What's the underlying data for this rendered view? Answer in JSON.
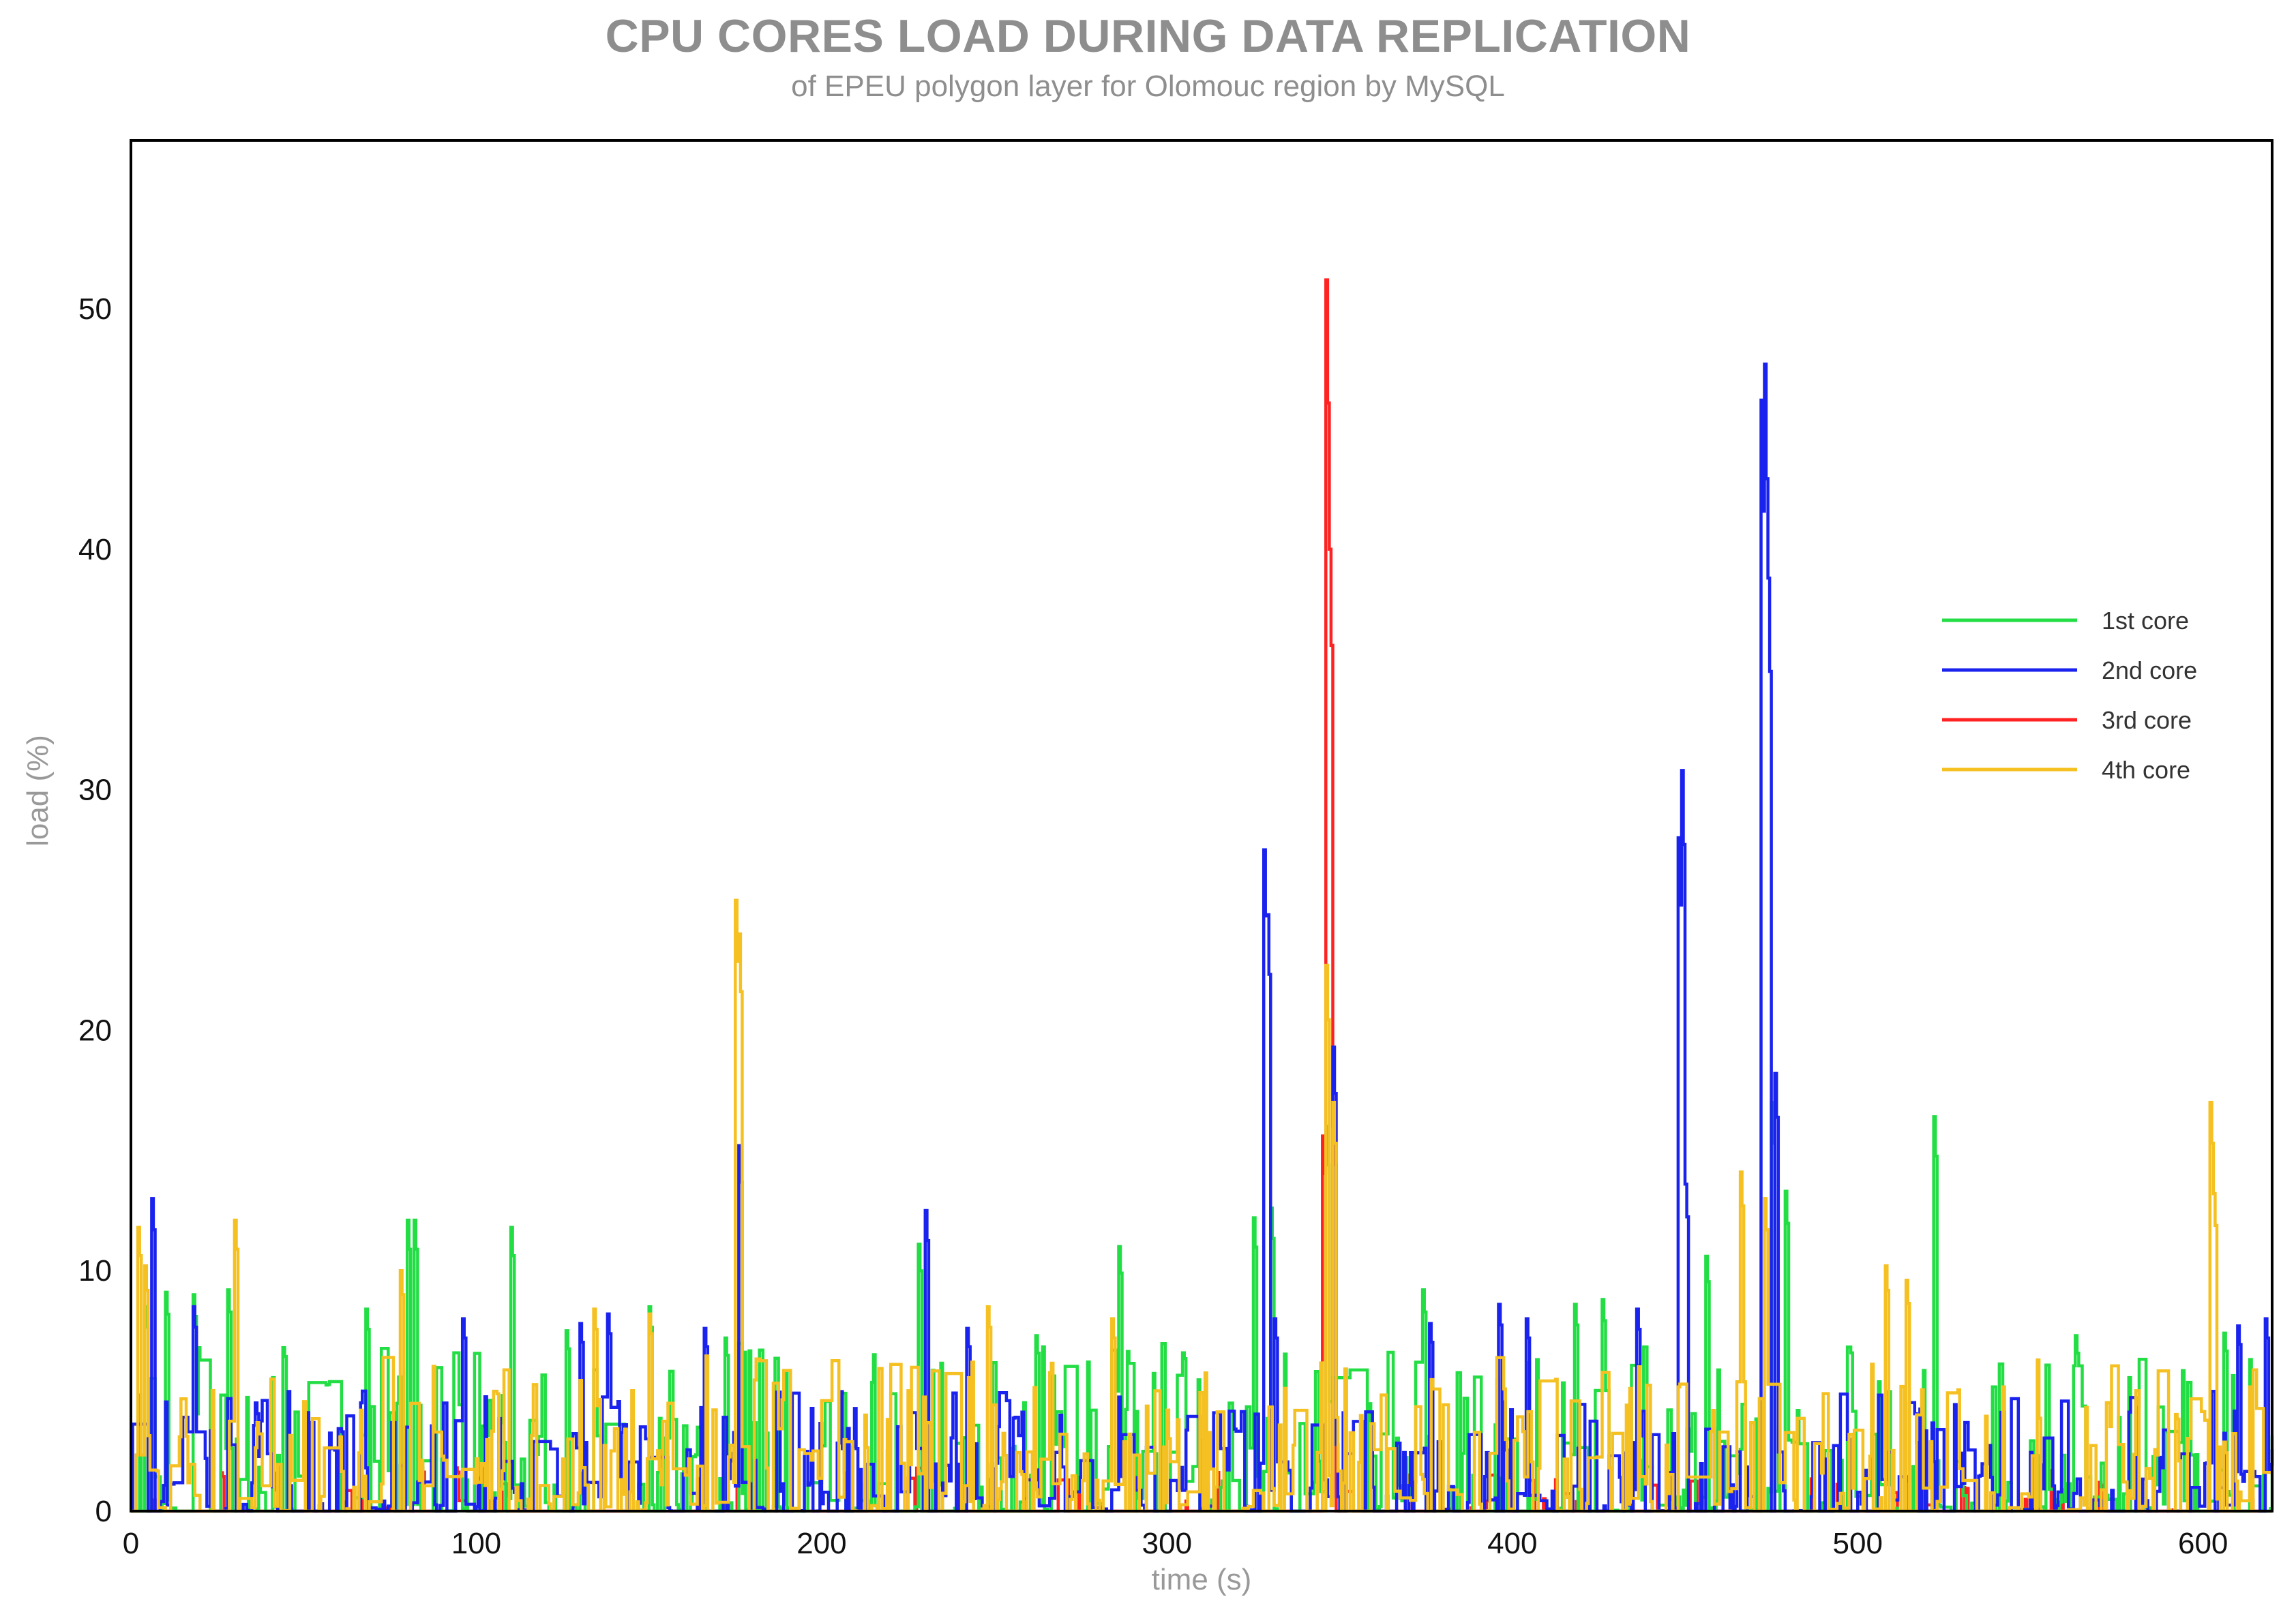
{
  "chart_data": {
    "type": "line",
    "title": "CPU CORES LOAD DURING DATA REPLICATION",
    "subtitle": "of EPEU polygon layer for Olomouc region by MySQL",
    "xlabel": "time (s)",
    "ylabel": "load (%)",
    "xlim": [
      0,
      620
    ],
    "ylim": [
      0,
      57
    ],
    "xticks": [
      0,
      100,
      200,
      300,
      400,
      500,
      600
    ],
    "yticks": [
      0,
      10,
      20,
      30,
      40,
      50
    ],
    "grid": false,
    "legend_position": "right",
    "series": [
      {
        "name": "1st core",
        "color": "#22dd44",
        "peaks": [
          [
            4,
            8.5
          ],
          [
            10,
            9.1
          ],
          [
            18,
            9.0
          ],
          [
            28,
            9.2
          ],
          [
            44,
            6.8
          ],
          [
            68,
            8.4
          ],
          [
            80,
            12.1
          ],
          [
            82,
            12.1
          ],
          [
            110,
            11.8
          ],
          [
            126,
            7.5
          ],
          [
            150,
            8.5
          ],
          [
            172,
            7.2
          ],
          [
            228,
            11.1
          ],
          [
            262,
            7.3
          ],
          [
            286,
            11.0
          ],
          [
            325,
            12.2
          ],
          [
            330,
            12.6
          ],
          [
            346,
            16.0
          ],
          [
            374,
            9.2
          ],
          [
            418,
            8.6
          ],
          [
            426,
            8.8
          ],
          [
            456,
            10.6
          ],
          [
            475,
            17.0
          ],
          [
            479,
            13.3
          ],
          [
            522,
            16.4
          ],
          [
            563,
            7.3
          ],
          [
            606,
            7.4
          ]
        ],
        "baseline": [
          0,
          7
        ]
      },
      {
        "name": "2nd core",
        "color": "#1a22ee",
        "peaks": [
          [
            6,
            13.0
          ],
          [
            18,
            8.5
          ],
          [
            36,
            4.5
          ],
          [
            96,
            8.0
          ],
          [
            130,
            7.8
          ],
          [
            138,
            8.2
          ],
          [
            166,
            7.6
          ],
          [
            176,
            15.2
          ],
          [
            230,
            12.5
          ],
          [
            242,
            7.6
          ],
          [
            328,
            27.5
          ],
          [
            329,
            24.8
          ],
          [
            331,
            8.0
          ],
          [
            348,
            19.3
          ],
          [
            376,
            7.8
          ],
          [
            396,
            8.6
          ],
          [
            404,
            8.0
          ],
          [
            436,
            8.4
          ],
          [
            448,
            28.0
          ],
          [
            449,
            30.8
          ],
          [
            450,
            13.6
          ],
          [
            472,
            46.2
          ],
          [
            473,
            47.7
          ],
          [
            474,
            38.8
          ],
          [
            476,
            18.2
          ],
          [
            516,
            4.5
          ],
          [
            610,
            7.7
          ],
          [
            618,
            8.0
          ]
        ],
        "baseline": [
          0,
          5
        ]
      },
      {
        "name": "3rd core",
        "color": "#ff2222",
        "peaks": [
          [
            26,
            1.6
          ],
          [
            84,
            1.8
          ],
          [
            94,
            1.8
          ],
          [
            345,
            15.6
          ],
          [
            346,
            51.2
          ],
          [
            347,
            40.0
          ],
          [
            348,
            16.0
          ],
          [
            370,
            1.5
          ],
          [
            570,
            1.2
          ]
        ],
        "baseline": [
          0,
          1.8
        ]
      },
      {
        "name": "4th core",
        "color": "#f5c021",
        "peaks": [
          [
            2,
            11.8
          ],
          [
            4,
            10.2
          ],
          [
            30,
            12.1
          ],
          [
            78,
            10.0
          ],
          [
            134,
            8.4
          ],
          [
            150,
            8.2
          ],
          [
            175,
            25.4
          ],
          [
            176,
            24.0
          ],
          [
            248,
            8.5
          ],
          [
            284,
            8.0
          ],
          [
            346,
            22.7
          ],
          [
            348,
            17.0
          ],
          [
            466,
            14.1
          ],
          [
            473,
            13.0
          ],
          [
            508,
            10.2
          ],
          [
            514,
            9.6
          ],
          [
            602,
            17.0
          ],
          [
            603,
            13.2
          ]
        ],
        "baseline": [
          0,
          6.5
        ]
      }
    ]
  }
}
